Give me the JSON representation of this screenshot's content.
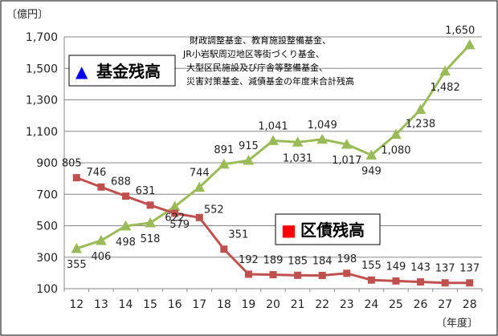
{
  "chart_data": {
    "type": "line",
    "ylabel": "〔億円〕",
    "xlabel": "〔年度〕",
    "x": [
      "12",
      "13",
      "14",
      "15",
      "16",
      "17",
      "18",
      "19",
      "20",
      "21",
      "22",
      "23",
      "24",
      "25",
      "26",
      "27",
      "28"
    ],
    "ylim": [
      100,
      1700
    ],
    "yticks": [
      "100",
      "300",
      "500",
      "700",
      "900",
      "1,100",
      "1,300",
      "1,500",
      "1,700"
    ],
    "grid": true,
    "series": [
      {
        "name": "基金残高",
        "marker": "▲",
        "color": "#9bbb59",
        "marker_color": "#0000ff",
        "values": [
          355,
          406,
          498,
          518,
          622,
          744,
          891,
          915,
          1041,
          1031,
          1049,
          1017,
          949,
          1080,
          1238,
          1482,
          1650
        ],
        "labels": [
          "355",
          "406",
          "498",
          "518",
          "622",
          "744",
          "891",
          "915",
          "1,041",
          "1,031",
          "1,049",
          "1,017",
          "949",
          "1,080",
          "1,238",
          "1,482",
          "1,650"
        ]
      },
      {
        "name": "区債残高",
        "marker": "■",
        "color": "#c0504d",
        "marker_color": "#ff0000",
        "values": [
          805,
          746,
          688,
          631,
          579,
          552,
          351,
          192,
          189,
          185,
          184,
          198,
          155,
          149,
          143,
          137,
          137
        ],
        "labels": [
          "805",
          "746",
          "688",
          "631",
          "579",
          "552",
          "351",
          "192",
          "189",
          "185",
          "184",
          "198",
          "155",
          "149",
          "143",
          "137",
          "137"
        ]
      }
    ],
    "annotation": [
      "財政調整基金、教育施設整備基金、",
      "JR小岩駅周辺地区等街づくり基金、",
      "大型区民施設及び庁舎等整備基金、",
      "災害対策基金、減債基金の年度末合計残高"
    ]
  }
}
